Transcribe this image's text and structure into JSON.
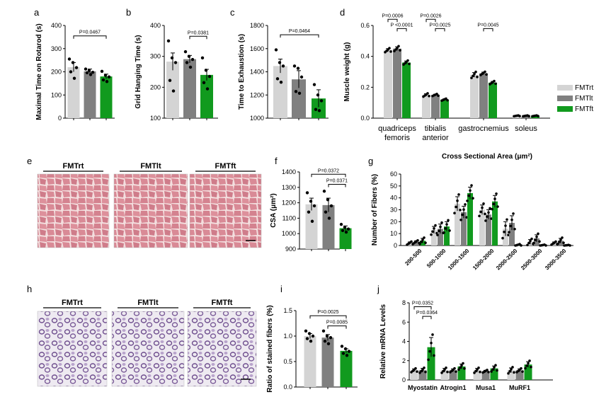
{
  "colors": {
    "rt": "#d4d4d4",
    "lt": "#808080",
    "ft": "#119a1e"
  },
  "legend": {
    "items": [
      {
        "key": "rt",
        "label": "FMTrt"
      },
      {
        "key": "lt",
        "label": "FMTlt"
      },
      {
        "key": "ft",
        "label": "FMTft"
      }
    ]
  },
  "chart_data": [
    {
      "panel": "a",
      "type": "bar",
      "ylabel": "Maximal Time on Rotarod (s)",
      "ylim": [
        0,
        400
      ],
      "yticks": [
        0,
        100,
        200,
        300,
        400
      ],
      "categories": [
        "FMTrt",
        "FMTlt",
        "FMTft"
      ],
      "values": [
        220,
        202,
        180
      ],
      "errors": [
        20,
        10,
        10
      ],
      "points": [
        [
          255,
          240,
          218,
          200,
          172
        ],
        [
          212,
          206,
          198,
          196,
          188
        ],
        [
          202,
          185,
          178,
          165,
          158
        ]
      ],
      "annotations": [
        {
          "text": "P=0.0467",
          "from": 0,
          "to": 2,
          "y": 355
        }
      ]
    },
    {
      "panel": "b",
      "type": "bar",
      "ylabel": "Grid Hanging Time (s)",
      "ylim": [
        100,
        400
      ],
      "yticks": [
        100,
        200,
        300,
        400
      ],
      "categories": [
        "FMTrt",
        "FMTlt",
        "FMTft"
      ],
      "values": [
        283,
        291,
        240
      ],
      "errors": [
        28,
        12,
        18
      ],
      "points": [
        [
          350,
          295,
          280,
          222,
          188
        ],
        [
          315,
          300,
          290,
          280,
          265
        ],
        [
          295,
          255,
          235,
          215,
          195
        ]
      ],
      "annotations": [
        {
          "text": "P=0.0381",
          "from": 1,
          "to": 2,
          "y": 365
        }
      ]
    },
    {
      "panel": "c",
      "type": "bar",
      "ylabel": "Time to Exhaustion (s)",
      "ylim": [
        1000,
        1800
      ],
      "yticks": [
        1000,
        1200,
        1400,
        1600,
        1800
      ],
      "categories": [
        "FMTrt",
        "FMTlt",
        "FMTft"
      ],
      "values": [
        1450,
        1335,
        1170
      ],
      "errors": [
        60,
        75,
        75
      ],
      "points": [
        [
          1590,
          1480,
          1450,
          1340,
          1310
        ],
        [
          1450,
          1430,
          1355,
          1230,
          1215
        ],
        [
          1290,
          1200,
          1150,
          1075,
          1065
        ]
      ],
      "annotations": [
        {
          "text": "P=0.0464",
          "from": 0,
          "to": 2,
          "y": 1720
        }
      ]
    },
    {
      "panel": "d",
      "type": "bar",
      "ylabel": "Muscle weight (g)",
      "ylim": [
        0,
        0.6
      ],
      "yticks": [
        0.0,
        0.2,
        0.4,
        0.6
      ],
      "categories": [
        "quadriceps femoris",
        "tibialis anterior",
        "gastrocnemius",
        "soleus"
      ],
      "series": [
        {
          "name": "FMTrt",
          "values": [
            0.44,
            0.15,
            0.28,
            0.015
          ],
          "errors": [
            0.01,
            0.008,
            0.015,
            0.002
          ]
        },
        {
          "name": "FMTlt",
          "values": [
            0.45,
            0.15,
            0.29,
            0.015
          ],
          "errors": [
            0.012,
            0.005,
            0.008,
            0.002
          ]
        },
        {
          "name": "FMTft",
          "values": [
            0.36,
            0.12,
            0.23,
            0.015
          ],
          "errors": [
            0.01,
            0.005,
            0.008,
            0.002
          ]
        }
      ],
      "annotations": [
        {
          "text": "P=0.0006",
          "from": [
            0,
            0
          ],
          "to": [
            0,
            1
          ],
          "y": 0.64
        },
        {
          "text": "P <0.0001",
          "from": [
            0,
            1
          ],
          "to": [
            0,
            2
          ],
          "y": 0.58
        },
        {
          "text": "P=0.0026",
          "from": [
            1,
            0
          ],
          "to": [
            1,
            1
          ],
          "y": 0.64
        },
        {
          "text": "P=0.0025",
          "from": [
            1,
            1
          ],
          "to": [
            1,
            2
          ],
          "y": 0.58
        },
        {
          "text": "P=0.0045",
          "from": [
            2,
            1
          ],
          "to": [
            2,
            2
          ],
          "y": 0.58
        }
      ]
    },
    {
      "panel": "f",
      "type": "bar",
      "ylabel": "CSA (μm²)",
      "ylim": [
        900,
        1400
      ],
      "yticks": [
        900,
        1000,
        1100,
        1200,
        1300,
        1400
      ],
      "categories": [
        "FMTrt",
        "FMTlt",
        "FMTft"
      ],
      "values": [
        1190,
        1185,
        1035
      ],
      "errors": [
        40,
        45,
        15
      ],
      "points": [
        [
          1265,
          1210,
          1180,
          1140,
          1080
        ],
        [
          1275,
          1220,
          1180,
          1140,
          1100
        ],
        [
          1060,
          1040,
          1030,
          1020,
          1010
        ]
      ],
      "annotations": [
        {
          "text": "P=0.0372",
          "from": 0,
          "to": 2,
          "y": 1385
        },
        {
          "text": "P=0.0371",
          "from": 1,
          "to": 2,
          "y": 1320
        }
      ]
    },
    {
      "panel": "g",
      "type": "bar",
      "title": "Cross Sectional Area (μm²)",
      "ylabel": "Number of Fibers (%)",
      "ylim": [
        0,
        60
      ],
      "yticks": [
        0,
        10,
        20,
        30,
        40,
        50,
        60
      ],
      "categories": [
        "200-500",
        "500-1000",
        "1000-1500",
        "1500-2000",
        "2000-2500",
        "2500-3000",
        "3000-3500"
      ],
      "series": [
        {
          "name": "FMTrt",
          "values": [
            2,
            13,
            35,
            30,
            14,
            3,
            2
          ],
          "errors": [
            1,
            3,
            6,
            4,
            6,
            2,
            1
          ]
        },
        {
          "name": "FMTlt",
          "values": [
            3,
            14,
            28,
            26,
            19,
            6,
            4
          ],
          "errors": [
            1,
            4,
            5,
            4,
            6,
            3,
            2
          ]
        },
        {
          "name": "FMTft",
          "values": [
            4,
            16,
            44,
            37,
            0.5,
            0.3,
            0.2
          ],
          "errors": [
            2,
            4,
            5,
            5,
            0.5,
            0.3,
            0.2
          ]
        }
      ]
    },
    {
      "panel": "i",
      "type": "bar",
      "ylabel": "Ratio of stained fibers (%)",
      "ylim": [
        0,
        1.5
      ],
      "yticks": [
        0.0,
        0.5,
        1.0,
        1.5
      ],
      "categories": [
        "FMTrt",
        "FMTlt",
        "FMTft"
      ],
      "values": [
        1.0,
        0.97,
        0.71
      ],
      "errors": [
        0.05,
        0.06,
        0.04
      ],
      "points": [
        [
          1.1,
          1.05,
          1.0,
          0.95,
          0.9
        ],
        [
          1.1,
          1.0,
          0.97,
          0.9,
          0.85
        ],
        [
          0.8,
          0.75,
          0.7,
          0.66,
          0.62
        ]
      ],
      "annotations": [
        {
          "text": "P=0.0025",
          "from": 0,
          "to": 2,
          "y": 1.4
        },
        {
          "text": "P=0.0085",
          "from": 1,
          "to": 2,
          "y": 1.2
        }
      ]
    },
    {
      "panel": "j",
      "type": "bar",
      "ylabel": "Relative mRNA Levels",
      "ylim": [
        0,
        8
      ],
      "yticks": [
        0,
        2,
        4,
        6,
        8
      ],
      "categories": [
        "Myostatin",
        "Atrogin1",
        "Musa1",
        "MuRF1"
      ],
      "series": [
        {
          "name": "FMTrt",
          "values": [
            1.0,
            1.0,
            1.0,
            1.0
          ],
          "errors": [
            0.15,
            0.2,
            0.2,
            0.25
          ]
        },
        {
          "name": "FMTlt",
          "values": [
            1.0,
            1.0,
            0.9,
            1.0
          ],
          "errors": [
            0.2,
            0.15,
            0.1,
            0.15
          ]
        },
        {
          "name": "FMTft",
          "values": [
            3.4,
            1.4,
            1.2,
            1.6
          ],
          "errors": [
            1.0,
            0.25,
            0.25,
            0.3
          ]
        }
      ],
      "annotations": [
        {
          "text": "P=0.0352",
          "from": [
            0,
            0
          ],
          "to": [
            0,
            2
          ],
          "y": 7.6
        },
        {
          "text": "P=0.0364",
          "from": [
            0,
            1
          ],
          "to": [
            0,
            2
          ],
          "y": 6.6
        }
      ]
    }
  ],
  "images": [
    {
      "panel": "e",
      "labels": [
        "FMTrt",
        "FMTlt",
        "FMTft"
      ]
    },
    {
      "panel": "h",
      "labels": [
        "FMTrt",
        "FMTlt",
        "FMTft"
      ]
    }
  ]
}
